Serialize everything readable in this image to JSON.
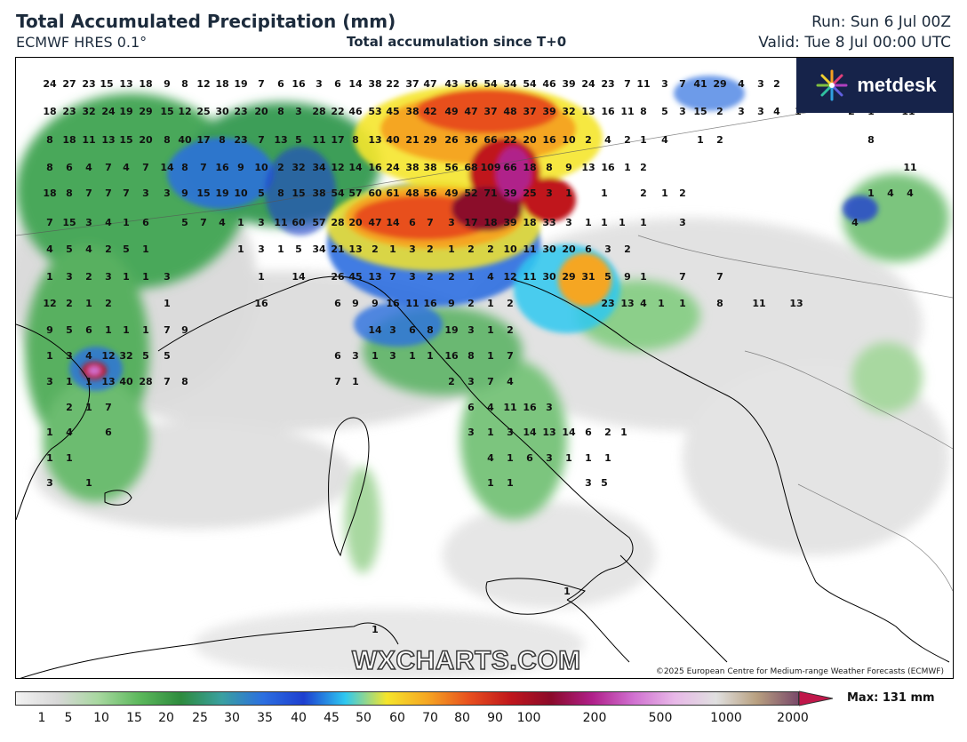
{
  "header": {
    "title": "Total Accumulated Precipitation (mm)",
    "model": "ECMWF HRES 0.1°",
    "subtitle": "Total accumulation since T+0",
    "run": "Run: Sun 6 Jul 00Z",
    "valid": "Valid: Tue 8 Jul 00:00 UTC"
  },
  "logo": {
    "text": "metdesk"
  },
  "watermark": "WXCHARTS.COM",
  "copyright": "©2025 European Centre for Medium-range Weather Forecasts (ECMWF)",
  "colorbar": {
    "ticks": [
      "1",
      "5",
      "10",
      "15",
      "20",
      "25",
      "30",
      "35",
      "40",
      "45",
      "50",
      "60",
      "70",
      "80",
      "90",
      "100",
      "200",
      "500",
      "1000",
      "2000"
    ],
    "max_label": "Max: 131 mm",
    "colors": [
      "#f2f2f2",
      "#d8d8d8",
      "#a8d8a0",
      "#5cb85c",
      "#2e8b3e",
      "#3aa0a0",
      "#2c6fe0",
      "#1e3fd0",
      "#2ec8f0",
      "#f5e52b",
      "#f5a623",
      "#e8501e",
      "#c0171c",
      "#8b0a2a",
      "#b0208a",
      "#d070d0",
      "#e8b8e8",
      "#e0e0e0",
      "#b8a080",
      "#7a4a6a"
    ]
  },
  "map": {
    "values": [
      {
        "t": "24"
      },
      {
        "t": "27"
      },
      {
        "t": "23"
      },
      {
        "t": "15"
      },
      {
        "t": "13"
      },
      {
        "t": "18"
      },
      {
        "t": "9"
      },
      {
        "t": "8"
      },
      {
        "t": "12"
      },
      {
        "t": "18"
      },
      {
        "t": "19"
      },
      {
        "t": "7"
      },
      {
        "t": "6"
      },
      {
        "t": "16"
      },
      {
        "t": "3"
      },
      {
        "t": "6"
      },
      {
        "t": "14"
      },
      {
        "t": "38"
      },
      {
        "t": "22"
      },
      {
        "t": "37"
      },
      {
        "t": "47"
      },
      {
        "t": "43"
      },
      {
        "t": "56"
      },
      {
        "t": "54"
      },
      {
        "t": "34"
      },
      {
        "t": "54"
      },
      {
        "t": "46"
      },
      {
        "t": "39"
      },
      {
        "t": "24"
      },
      {
        "t": "23"
      },
      {
        "t": "7"
      },
      {
        "t": "11"
      },
      {
        "t": "3"
      },
      {
        "t": "7"
      },
      {
        "t": "41"
      },
      {
        "t": "29"
      },
      {
        "t": "4"
      },
      {
        "t": "3"
      },
      {
        "t": "2"
      },
      {
        "t": "18"
      },
      {
        "t": "23"
      },
      {
        "t": "32"
      },
      {
        "t": "24"
      },
      {
        "t": "19"
      },
      {
        "t": "29"
      },
      {
        "t": "15"
      },
      {
        "t": "12"
      },
      {
        "t": "25"
      },
      {
        "t": "30"
      },
      {
        "t": "23"
      },
      {
        "t": "20"
      },
      {
        "t": "8"
      },
      {
        "t": "3"
      },
      {
        "t": "28"
      },
      {
        "t": "22"
      },
      {
        "t": "46"
      },
      {
        "t": "53"
      },
      {
        "t": "45"
      },
      {
        "t": "38"
      },
      {
        "t": "42"
      },
      {
        "t": "49"
      },
      {
        "t": "47"
      },
      {
        "t": "37"
      },
      {
        "t": "48"
      },
      {
        "t": "37"
      },
      {
        "t": "39"
      },
      {
        "t": "32"
      },
      {
        "t": "13"
      },
      {
        "t": "16"
      },
      {
        "t": "11"
      },
      {
        "t": "8"
      },
      {
        "t": "5"
      },
      {
        "t": "3"
      },
      {
        "t": "15"
      },
      {
        "t": "2"
      },
      {
        "t": "3"
      },
      {
        "t": "3"
      },
      {
        "t": "4"
      },
      {
        "t": "1"
      },
      {
        "t": "2"
      },
      {
        "t": "1"
      },
      {
        "t": "11"
      },
      {
        "t": "8"
      },
      {
        "t": "18"
      },
      {
        "t": "11"
      },
      {
        "t": "13"
      },
      {
        "t": "15"
      },
      {
        "t": "20"
      },
      {
        "t": "8"
      },
      {
        "t": "40"
      },
      {
        "t": "17"
      },
      {
        "t": "8"
      },
      {
        "t": "23"
      },
      {
        "t": "7"
      },
      {
        "t": "13"
      },
      {
        "t": "5"
      },
      {
        "t": "11"
      },
      {
        "t": "17"
      },
      {
        "t": "8"
      },
      {
        "t": "13"
      },
      {
        "t": "40"
      },
      {
        "t": "21"
      },
      {
        "t": "29"
      },
      {
        "t": "26"
      },
      {
        "t": "36"
      },
      {
        "t": "66"
      },
      {
        "t": "22"
      },
      {
        "t": "20"
      },
      {
        "t": "16"
      },
      {
        "t": "10"
      },
      {
        "t": "2"
      },
      {
        "t": "4"
      },
      {
        "t": "2"
      },
      {
        "t": "1"
      },
      {
        "t": "4"
      },
      {
        "t": "1"
      },
      {
        "t": "2"
      },
      {
        "t": "8"
      },
      {
        "t": "8"
      },
      {
        "t": "6"
      },
      {
        "t": "4"
      },
      {
        "t": "7"
      },
      {
        "t": "4"
      },
      {
        "t": "7"
      },
      {
        "t": "14"
      },
      {
        "t": "8"
      },
      {
        "t": "7"
      },
      {
        "t": "16"
      },
      {
        "t": "9"
      },
      {
        "t": "10"
      },
      {
        "t": "2"
      },
      {
        "t": "32"
      },
      {
        "t": "34"
      },
      {
        "t": "12"
      },
      {
        "t": "14"
      },
      {
        "t": "16"
      },
      {
        "t": "24"
      },
      {
        "t": "38"
      },
      {
        "t": "38"
      },
      {
        "t": "56"
      },
      {
        "t": "68"
      },
      {
        "t": "109"
      },
      {
        "t": "66"
      },
      {
        "t": "18"
      },
      {
        "t": "8"
      },
      {
        "t": "9"
      },
      {
        "t": "13"
      },
      {
        "t": "16"
      },
      {
        "t": "1"
      },
      {
        "t": "2"
      },
      {
        "t": "11"
      },
      {
        "t": "18"
      },
      {
        "t": "8"
      },
      {
        "t": "7"
      },
      {
        "t": "7"
      },
      {
        "t": "7"
      },
      {
        "t": "3"
      },
      {
        "t": "3"
      },
      {
        "t": "9"
      },
      {
        "t": "15"
      },
      {
        "t": "19"
      },
      {
        "t": "10"
      },
      {
        "t": "5"
      },
      {
        "t": "8"
      },
      {
        "t": "15"
      },
      {
        "t": "38"
      },
      {
        "t": "54"
      },
      {
        "t": "57"
      },
      {
        "t": "60"
      },
      {
        "t": "61"
      },
      {
        "t": "48"
      },
      {
        "t": "56"
      },
      {
        "t": "49"
      },
      {
        "t": "52"
      },
      {
        "t": "71"
      },
      {
        "t": "39"
      },
      {
        "t": "25"
      },
      {
        "t": "3"
      },
      {
        "t": "1"
      },
      {
        "t": "1"
      },
      {
        "t": "2"
      },
      {
        "t": "1"
      },
      {
        "t": "2"
      },
      {
        "t": "1"
      },
      {
        "t": "4"
      },
      {
        "t": "4"
      },
      {
        "t": "7"
      },
      {
        "t": "15"
      },
      {
        "t": "3"
      },
      {
        "t": "4"
      },
      {
        "t": "1"
      },
      {
        "t": "6"
      },
      {
        "t": "5"
      },
      {
        "t": "7"
      },
      {
        "t": "4"
      },
      {
        "t": "1"
      },
      {
        "t": "3"
      },
      {
        "t": "11"
      },
      {
        "t": "60"
      },
      {
        "t": "57"
      },
      {
        "t": "28"
      },
      {
        "t": "20"
      },
      {
        "t": "47"
      },
      {
        "t": "14"
      },
      {
        "t": "6"
      },
      {
        "t": "7"
      },
      {
        "t": "3"
      },
      {
        "t": "17"
      },
      {
        "t": "18"
      },
      {
        "t": "39"
      },
      {
        "t": "18"
      },
      {
        "t": "33"
      },
      {
        "t": "3"
      },
      {
        "t": "1"
      },
      {
        "t": "1"
      },
      {
        "t": "1"
      },
      {
        "t": "1"
      },
      {
        "t": "3"
      },
      {
        "t": "4"
      },
      {
        "t": "4"
      },
      {
        "t": "5"
      },
      {
        "t": "4"
      },
      {
        "t": "2"
      },
      {
        "t": "5"
      },
      {
        "t": "1"
      },
      {
        "t": "1"
      },
      {
        "t": "3"
      },
      {
        "t": "1"
      },
      {
        "t": "5"
      },
      {
        "t": "34"
      },
      {
        "t": "21"
      },
      {
        "t": "13"
      },
      {
        "t": "2"
      },
      {
        "t": "1"
      },
      {
        "t": "3"
      },
      {
        "t": "2"
      },
      {
        "t": "1"
      },
      {
        "t": "2"
      },
      {
        "t": "2"
      },
      {
        "t": "10"
      },
      {
        "t": "11"
      },
      {
        "t": "30"
      },
      {
        "t": "20"
      },
      {
        "t": "6"
      },
      {
        "t": "3"
      },
      {
        "t": "2"
      },
      {
        "t": "1"
      },
      {
        "t": "3"
      },
      {
        "t": "2"
      },
      {
        "t": "3"
      },
      {
        "t": "1"
      },
      {
        "t": "1"
      },
      {
        "t": "3"
      },
      {
        "t": "1"
      },
      {
        "t": "14"
      },
      {
        "t": "26"
      },
      {
        "t": "45"
      },
      {
        "t": "13"
      },
      {
        "t": "7"
      },
      {
        "t": "3"
      },
      {
        "t": "2"
      },
      {
        "t": "2"
      },
      {
        "t": "1"
      },
      {
        "t": "4"
      },
      {
        "t": "12"
      },
      {
        "t": "11"
      },
      {
        "t": "30"
      },
      {
        "t": "29"
      },
      {
        "t": "31"
      },
      {
        "t": "5"
      },
      {
        "t": "9"
      },
      {
        "t": "1"
      },
      {
        "t": "7"
      },
      {
        "t": "7"
      },
      {
        "t": "12"
      },
      {
        "t": "2"
      },
      {
        "t": "1"
      },
      {
        "t": "2"
      },
      {
        "t": "1"
      },
      {
        "t": "16"
      },
      {
        "t": "6"
      },
      {
        "t": "9"
      },
      {
        "t": "9"
      },
      {
        "t": "16"
      },
      {
        "t": "11"
      },
      {
        "t": "16"
      },
      {
        "t": "9"
      },
      {
        "t": "2"
      },
      {
        "t": "1"
      },
      {
        "t": "2"
      },
      {
        "t": "23"
      },
      {
        "t": "13"
      },
      {
        "t": "4"
      },
      {
        "t": "1"
      },
      {
        "t": "1"
      },
      {
        "t": "8"
      },
      {
        "t": "11"
      },
      {
        "t": "13"
      },
      {
        "t": "9"
      },
      {
        "t": "5"
      },
      {
        "t": "6"
      },
      {
        "t": "1"
      },
      {
        "t": "1"
      },
      {
        "t": "1"
      },
      {
        "t": "7"
      },
      {
        "t": "9"
      },
      {
        "t": "14"
      },
      {
        "t": "3"
      },
      {
        "t": "6"
      },
      {
        "t": "8"
      },
      {
        "t": "19"
      },
      {
        "t": "3"
      },
      {
        "t": "1"
      },
      {
        "t": "2"
      },
      {
        "t": "1"
      },
      {
        "t": "3"
      },
      {
        "t": "4"
      },
      {
        "t": "12"
      },
      {
        "t": "32"
      },
      {
        "t": "5"
      },
      {
        "t": "5"
      },
      {
        "t": "6"
      },
      {
        "t": "3"
      },
      {
        "t": "1"
      },
      {
        "t": "3"
      },
      {
        "t": "1"
      },
      {
        "t": "1"
      },
      {
        "t": "16"
      },
      {
        "t": "8"
      },
      {
        "t": "1"
      },
      {
        "t": "7"
      },
      {
        "t": "3"
      },
      {
        "t": "1"
      },
      {
        "t": "1"
      },
      {
        "t": "13"
      },
      {
        "t": "40"
      },
      {
        "t": "28"
      },
      {
        "t": "7"
      },
      {
        "t": "8"
      },
      {
        "t": "7"
      },
      {
        "t": "1"
      },
      {
        "t": "2"
      },
      {
        "t": "3"
      },
      {
        "t": "7"
      },
      {
        "t": "4"
      },
      {
        "t": "2"
      },
      {
        "t": "1"
      },
      {
        "t": "7"
      },
      {
        "t": "6"
      },
      {
        "t": "4"
      },
      {
        "t": "11"
      },
      {
        "t": "16"
      },
      {
        "t": "3"
      },
      {
        "t": "1"
      },
      {
        "t": "4"
      },
      {
        "t": "6"
      },
      {
        "t": "3"
      },
      {
        "t": "1"
      },
      {
        "t": "3"
      },
      {
        "t": "14"
      },
      {
        "t": "13"
      },
      {
        "t": "14"
      },
      {
        "t": "6"
      },
      {
        "t": "2"
      },
      {
        "t": "1"
      },
      {
        "t": "1"
      },
      {
        "t": "1"
      },
      {
        "t": "4"
      },
      {
        "t": "1"
      },
      {
        "t": "6"
      },
      {
        "t": "3"
      },
      {
        "t": "1"
      },
      {
        "t": "1"
      },
      {
        "t": "1"
      },
      {
        "t": "3"
      },
      {
        "t": "1"
      },
      {
        "t": "1"
      },
      {
        "t": "1"
      },
      {
        "t": "3"
      },
      {
        "t": "5"
      },
      {
        "t": "1"
      },
      {
        "t": "1"
      },
      {
        "t": "1"
      },
      {
        "t": "1"
      }
    ]
  }
}
